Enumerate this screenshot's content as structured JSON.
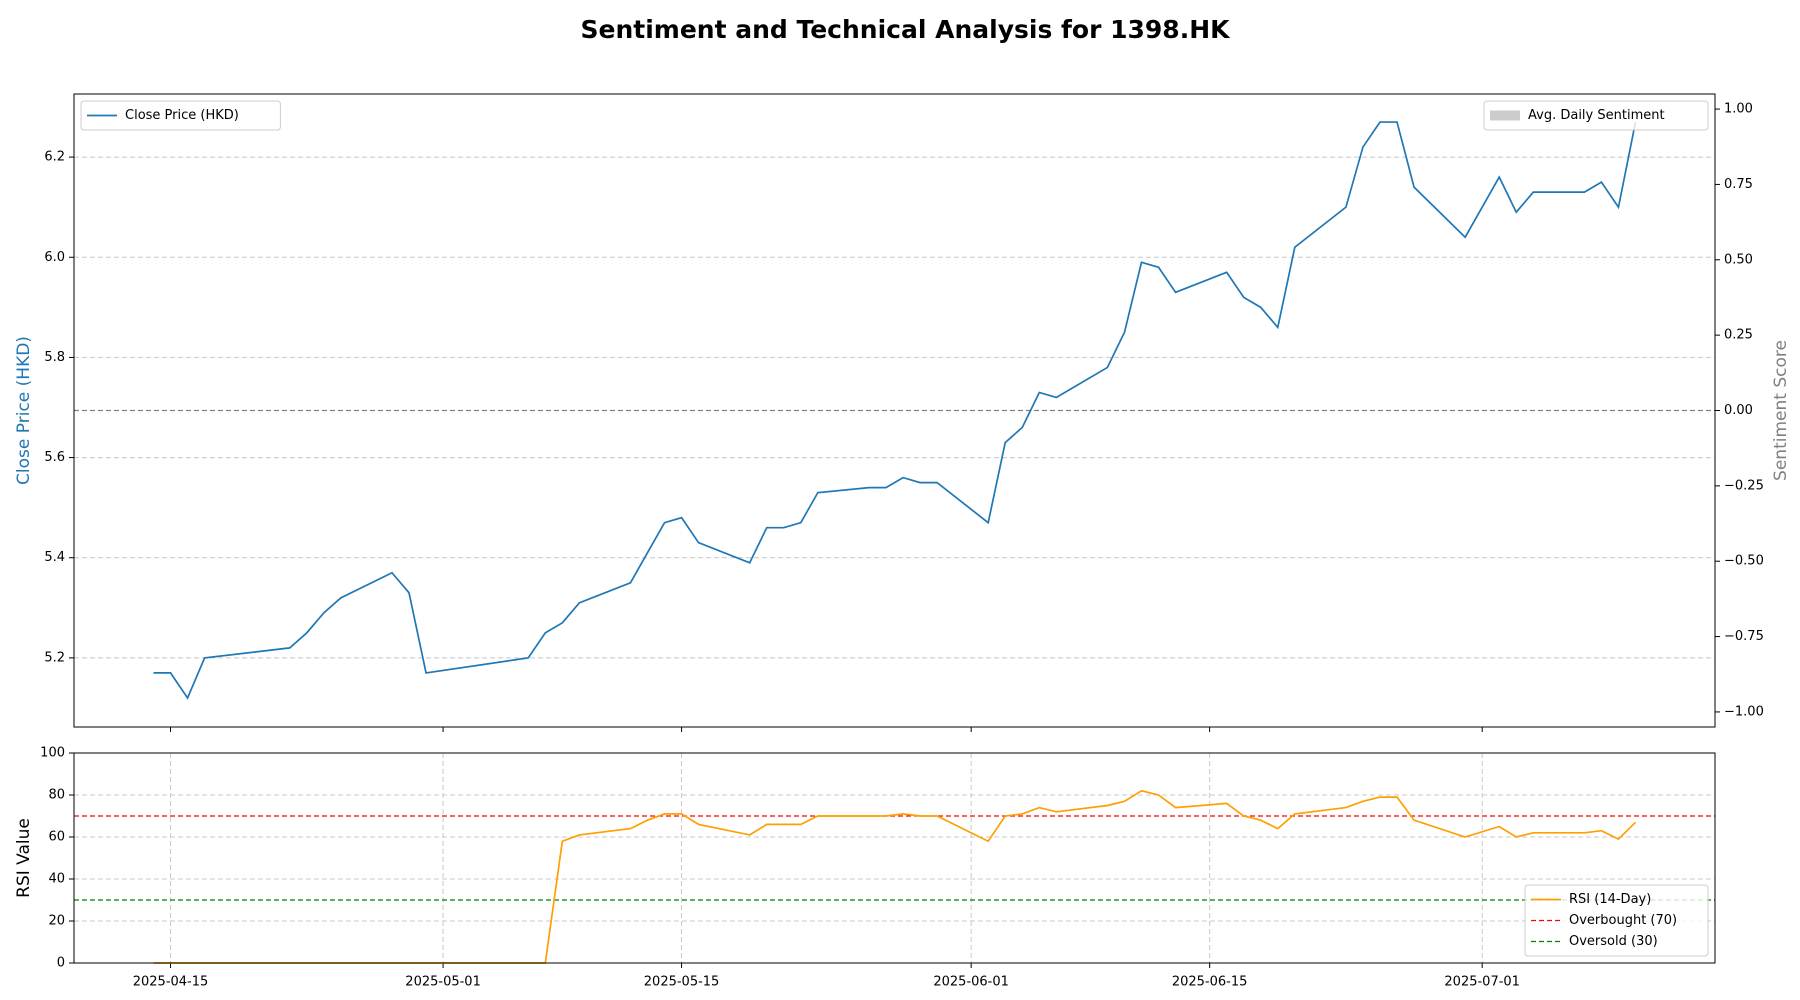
{
  "chart_data": [
    {
      "type": "line",
      "title": "Sentiment and Technical Analysis for 1398.HK",
      "ylabel": "Close Price (HKD)",
      "y2label": "Sentiment Score",
      "x": [
        "2025-04-14",
        "2025-04-15",
        "2025-04-16",
        "2025-04-17",
        "2025-04-22",
        "2025-04-23",
        "2025-04-24",
        "2025-04-25",
        "2025-04-28",
        "2025-04-29",
        "2025-04-30",
        "2025-05-06",
        "2025-05-07",
        "2025-05-08",
        "2025-05-09",
        "2025-05-12",
        "2025-05-13",
        "2025-05-14",
        "2025-05-15",
        "2025-05-16",
        "2025-05-19",
        "2025-05-20",
        "2025-05-21",
        "2025-05-22",
        "2025-05-23",
        "2025-05-26",
        "2025-05-27",
        "2025-05-28",
        "2025-05-29",
        "2025-05-30",
        "2025-06-02",
        "2025-06-03",
        "2025-06-04",
        "2025-06-05",
        "2025-06-06",
        "2025-06-09",
        "2025-06-10",
        "2025-06-11",
        "2025-06-12",
        "2025-06-13",
        "2025-06-16",
        "2025-06-17",
        "2025-06-18",
        "2025-06-19",
        "2025-06-20",
        "2025-06-23",
        "2025-06-24",
        "2025-06-25",
        "2025-06-26",
        "2025-06-27",
        "2025-06-30",
        "2025-07-02",
        "2025-07-03",
        "2025-07-04",
        "2025-07-07",
        "2025-07-08",
        "2025-07-09",
        "2025-07-10"
      ],
      "xlim": [
        "2025-04-09T08:00",
        "2025-07-14T16:00"
      ],
      "ylim": [
        5.062,
        6.326
      ],
      "yticks": [
        {
          "value": 5.2,
          "label": "5.2"
        },
        {
          "value": 5.4,
          "label": "5.4"
        },
        {
          "value": 5.6,
          "label": "5.6"
        },
        {
          "value": 5.8,
          "label": "5.8"
        },
        {
          "value": 6.0,
          "label": "6.0"
        },
        {
          "value": 6.2,
          "label": "6.2"
        }
      ],
      "y2lim": [
        -1.05,
        1.05
      ],
      "y2ticks": [
        {
          "value": -1,
          "label": "−1.00"
        },
        {
          "value": -0.75,
          "label": "−0.75"
        },
        {
          "value": -0.5,
          "label": "−0.50"
        },
        {
          "value": -0.25,
          "label": "−0.25"
        },
        {
          "value": 0,
          "label": "0.00"
        },
        {
          "value": 0.25,
          "label": "0.25"
        },
        {
          "value": 0.5,
          "label": "0.50"
        },
        {
          "value": 0.75,
          "label": "0.75"
        },
        {
          "value": 1,
          "label": "1.00"
        }
      ],
      "grid": "y",
      "legend": "upper left",
      "legend2": "upper right",
      "series": [
        {
          "name": "Close Price (HKD)",
          "color": "#1f77b4",
          "values": [
            5.17,
            5.17,
            5.12,
            5.2,
            5.22,
            5.25,
            5.29,
            5.32,
            5.37,
            5.33,
            5.17,
            5.2,
            5.25,
            5.27,
            5.31,
            5.35,
            5.41,
            5.47,
            5.48,
            5.43,
            5.39,
            5.46,
            5.46,
            5.47,
            5.53,
            5.54,
            5.54,
            5.56,
            5.55,
            5.55,
            5.47,
            5.63,
            5.66,
            5.73,
            5.72,
            5.78,
            5.85,
            5.99,
            5.98,
            5.93,
            5.97,
            5.92,
            5.9,
            5.86,
            6.02,
            6.1,
            6.22,
            6.27,
            6.27,
            6.14,
            6.04,
            6.16,
            6.09,
            6.13,
            6.13,
            6.15,
            6.1,
            6.27
          ]
        },
        {
          "name": "Avg. Daily Sentiment",
          "color": "#aaaaaa",
          "type": "bar",
          "axis": "y2",
          "values": [
            0,
            0,
            0,
            0,
            0,
            0,
            0,
            0,
            0,
            0,
            0,
            0,
            0,
            0,
            0,
            0,
            0,
            0,
            0,
            0,
            0,
            0,
            0,
            0,
            0,
            0,
            0,
            0,
            0,
            0,
            0,
            0,
            0,
            0,
            0,
            0,
            0,
            0,
            0,
            0,
            0,
            0,
            0,
            0,
            0,
            0,
            0,
            0,
            0,
            0,
            0,
            0,
            0,
            0,
            0,
            0,
            0,
            0
          ]
        }
      ],
      "hlines": [
        {
          "value": 0,
          "axis": "y2",
          "color": "#808080",
          "style": "dashed"
        }
      ]
    },
    {
      "type": "line",
      "ylabel": "RSI Value",
      "x": [
        "2025-04-14",
        "2025-04-15",
        "2025-04-16",
        "2025-04-17",
        "2025-04-22",
        "2025-04-23",
        "2025-04-24",
        "2025-04-25",
        "2025-04-28",
        "2025-04-29",
        "2025-04-30",
        "2025-05-06",
        "2025-05-07",
        "2025-05-08",
        "2025-05-09",
        "2025-05-12",
        "2025-05-13",
        "2025-05-14",
        "2025-05-15",
        "2025-05-16",
        "2025-05-19",
        "2025-05-20",
        "2025-05-21",
        "2025-05-22",
        "2025-05-23",
        "2025-05-26",
        "2025-05-27",
        "2025-05-28",
        "2025-05-29",
        "2025-05-30",
        "2025-06-02",
        "2025-06-03",
        "2025-06-04",
        "2025-06-05",
        "2025-06-06",
        "2025-06-09",
        "2025-06-10",
        "2025-06-11",
        "2025-06-12",
        "2025-06-13",
        "2025-06-16",
        "2025-06-17",
        "2025-06-18",
        "2025-06-19",
        "2025-06-20",
        "2025-06-23",
        "2025-06-24",
        "2025-06-25",
        "2025-06-26",
        "2025-06-27",
        "2025-06-30",
        "2025-07-02",
        "2025-07-03",
        "2025-07-04",
        "2025-07-07",
        "2025-07-08",
        "2025-07-09",
        "2025-07-10"
      ],
      "xlim": [
        "2025-04-09T08:00",
        "2025-07-14T16:00"
      ],
      "xticks": [
        "2025-04-15",
        "2025-05-01",
        "2025-05-15",
        "2025-06-01",
        "2025-06-15",
        "2025-07-01"
      ],
      "ylim": [
        0,
        100
      ],
      "yticks": [
        0,
        20,
        40,
        60,
        80,
        100
      ],
      "grid": "both",
      "legend": "lower right",
      "series": [
        {
          "name": "RSI (14-Day)",
          "color": "#ff9f00",
          "values": [
            0,
            0,
            0,
            0,
            0,
            0,
            0,
            0,
            0,
            0,
            0,
            0,
            0,
            58,
            61,
            64,
            68,
            71,
            71,
            66,
            61,
            66,
            66,
            66,
            70,
            70,
            70,
            71,
            70,
            70,
            58,
            70,
            71,
            74,
            72,
            75,
            77,
            82,
            80,
            74,
            76,
            70,
            68,
            64,
            71,
            74,
            77,
            79,
            79,
            68,
            60,
            65,
            60,
            62,
            62,
            63,
            59,
            67
          ]
        }
      ],
      "hlines": [
        {
          "value": 70,
          "name": "Overbought (70)",
          "color": "#ff0000",
          "style": "dashed"
        },
        {
          "value": 30,
          "name": "Oversold (30)",
          "color": "#008000",
          "style": "dashed"
        }
      ]
    }
  ]
}
